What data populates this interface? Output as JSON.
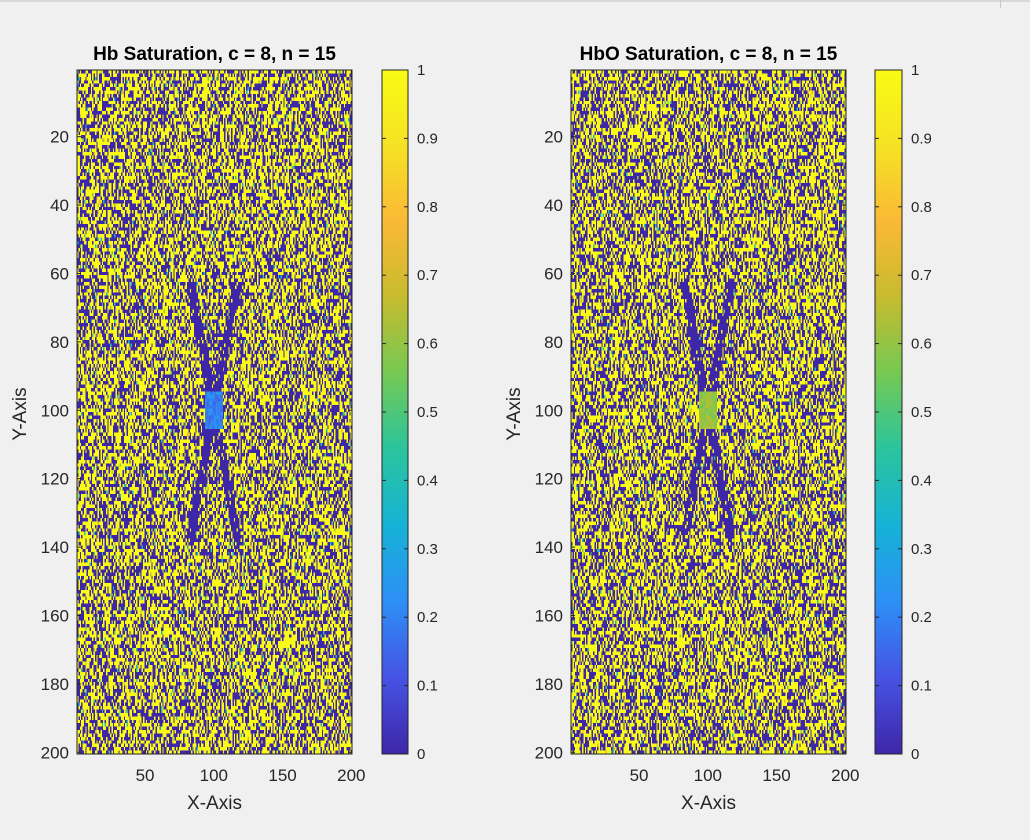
{
  "chart_data": [
    {
      "type": "heatmap",
      "title": "Hb Saturation, c = 8, n = 15",
      "xlabel": "X-Axis",
      "ylabel": "Y-Axis",
      "xlim": [
        1,
        200
      ],
      "ylim": [
        1,
        200
      ],
      "x_ticks": [
        50,
        100,
        150,
        200
      ],
      "y_ticks": [
        20,
        40,
        60,
        80,
        100,
        120,
        140,
        160,
        180,
        200
      ],
      "y_direction": "reversed",
      "colorbar": {
        "range": [
          0,
          1
        ],
        "ticks": [
          0,
          0.1,
          0.2,
          0.3,
          0.4,
          0.5,
          0.6,
          0.7,
          0.8,
          0.9,
          1
        ]
      },
      "data_description": "binary-like noise of 0/1 values across a 200x200 grid, with an X-shaped band of low values crossing at (100,100) and intermediate values (~0.2) at the center",
      "center_value": 0.2
    },
    {
      "type": "heatmap",
      "title": "HbO Saturation, c = 8, n = 15",
      "xlabel": "X-Axis",
      "ylabel": "Y-Axis",
      "xlim": [
        1,
        200
      ],
      "ylim": [
        1,
        200
      ],
      "x_ticks": [
        50,
        100,
        150,
        200
      ],
      "y_ticks": [
        20,
        40,
        60,
        80,
        100,
        120,
        140,
        160,
        180,
        200
      ],
      "y_direction": "reversed",
      "colorbar": {
        "range": [
          0,
          1
        ],
        "ticks": [
          0,
          0.1,
          0.2,
          0.3,
          0.4,
          0.5,
          0.6,
          0.7,
          0.8,
          0.9,
          1
        ]
      },
      "data_description": "binary-like noise of 0/1 values across a 200x200 grid, with an X-shaped band of low values crossing at (100,100) and intermediate values (~0.6) at the center",
      "center_value": 0.6
    }
  ],
  "colormap": [
    "#3e26a8",
    "#4653e4",
    "#2d8ff6",
    "#16b2d6",
    "#2ac49d",
    "#74c954",
    "#c6bb2e",
    "#fab936",
    "#f5e224",
    "#f9fb15"
  ]
}
